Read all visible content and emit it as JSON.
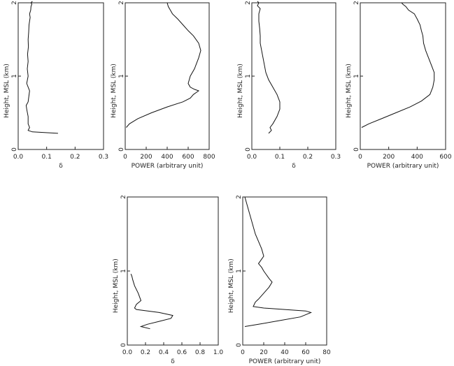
{
  "figure": {
    "background": "#ffffff",
    "line_color": "#111111"
  },
  "chart_data": [
    {
      "type": "line",
      "xlabel": "δ",
      "ylabel": "Height, MSL (km)",
      "xlim": [
        0,
        0.3
      ],
      "ylim": [
        0,
        2
      ],
      "xticks": [
        "0.0",
        "0.1",
        "0.2",
        "0.3"
      ],
      "yticks": [
        "0",
        "1",
        "2"
      ],
      "grid": false,
      "series": [
        {
          "x": [
            0.14,
            0.05,
            0.035,
            0.04,
            0.035,
            0.035,
            0.03,
            0.028,
            0.035,
            0.04,
            0.03,
            0.035,
            0.032,
            0.035,
            0.033,
            0.036,
            0.035,
            0.037,
            0.038,
            0.042,
            0.04,
            0.044,
            0.045,
            0.048,
            0.045,
            0.05
          ],
          "y": [
            0.22,
            0.24,
            0.26,
            0.3,
            0.35,
            0.45,
            0.55,
            0.6,
            0.65,
            0.8,
            0.9,
            1.0,
            1.1,
            1.2,
            1.3,
            1.4,
            1.5,
            1.6,
            1.7,
            1.8,
            1.85,
            1.9,
            1.95,
            1.98,
            2.0,
            2.02
          ]
        }
      ]
    },
    {
      "type": "line",
      "xlabel": "POWER (arbitrary unit)",
      "ylabel": "Height, MSL (km)",
      "xlim": [
        0,
        800
      ],
      "ylim": [
        0,
        2
      ],
      "xticks": [
        "0",
        "200",
        "400",
        "600",
        "800"
      ],
      "yticks": [
        "0",
        "1",
        "2"
      ],
      "grid": false,
      "series": [
        {
          "x": [
            10,
            40,
            120,
            250,
            400,
            550,
            620,
            650,
            680,
            700,
            660,
            620,
            600,
            620,
            660,
            700,
            720,
            700,
            650,
            600,
            550,
            500,
            450,
            430,
            410,
            400
          ],
          "y": [
            0.3,
            0.35,
            0.42,
            0.5,
            0.58,
            0.65,
            0.7,
            0.75,
            0.78,
            0.8,
            0.82,
            0.85,
            0.9,
            1.0,
            1.1,
            1.25,
            1.35,
            1.45,
            1.55,
            1.62,
            1.7,
            1.78,
            1.85,
            1.9,
            1.95,
            2.0
          ]
        }
      ]
    },
    {
      "type": "line",
      "xlabel": "δ",
      "ylabel": "Height, MSL (km)",
      "xlim": [
        0,
        0.3
      ],
      "ylim": [
        0,
        2
      ],
      "xticks": [
        "0.0",
        "0.1",
        "0.2",
        "0.3"
      ],
      "yticks": [
        "0",
        "1",
        "2"
      ],
      "grid": false,
      "series": [
        {
          "x": [
            0.06,
            0.07,
            0.065,
            0.075,
            0.09,
            0.1,
            0.1,
            0.09,
            0.075,
            0.06,
            0.05,
            0.045,
            0.04,
            0.035,
            0.03,
            0.03,
            0.028,
            0.025,
            0.025,
            0.03,
            0.02,
            0.025,
            0.02
          ],
          "y": [
            0.22,
            0.26,
            0.3,
            0.35,
            0.45,
            0.55,
            0.65,
            0.75,
            0.85,
            0.95,
            1.05,
            1.15,
            1.25,
            1.35,
            1.45,
            1.55,
            1.65,
            1.75,
            1.85,
            1.92,
            1.96,
            2.0,
            2.02
          ]
        }
      ]
    },
    {
      "type": "line",
      "xlabel": "POWER (arbitrary unit)",
      "ylabel": "Height, MSL (km)",
      "xlim": [
        0,
        600
      ],
      "ylim": [
        0,
        2
      ],
      "xticks": [
        "0",
        "200",
        "400",
        "600"
      ],
      "yticks": [
        "0",
        "1",
        "2"
      ],
      "grid": false,
      "series": [
        {
          "x": [
            10,
            60,
            150,
            250,
            350,
            430,
            490,
            510,
            520,
            520,
            500,
            480,
            460,
            445,
            440,
            430,
            420,
            400,
            380,
            340,
            320,
            300,
            290
          ],
          "y": [
            0.3,
            0.35,
            0.42,
            0.5,
            0.58,
            0.66,
            0.75,
            0.85,
            0.95,
            1.05,
            1.15,
            1.25,
            1.35,
            1.45,
            1.55,
            1.62,
            1.7,
            1.78,
            1.85,
            1.9,
            1.95,
            1.98,
            2.0
          ]
        }
      ]
    },
    {
      "type": "line",
      "xlabel": "δ",
      "ylabel": "Height, MSL (km)",
      "xlim": [
        0,
        1.0
      ],
      "ylim": [
        0,
        2
      ],
      "xticks": [
        "0.0",
        "0.2",
        "0.4",
        "0.6",
        "0.8",
        "1.0"
      ],
      "yticks": [
        "0",
        "1",
        "2"
      ],
      "grid": false,
      "series": [
        {
          "x": [
            0.25,
            0.15,
            0.22,
            0.35,
            0.48,
            0.5,
            0.35,
            0.1,
            0.08,
            0.1,
            0.15,
            0.12,
            0.08,
            0.06,
            0.05,
            0.04
          ],
          "y": [
            0.22,
            0.25,
            0.28,
            0.32,
            0.36,
            0.4,
            0.44,
            0.48,
            0.5,
            0.55,
            0.6,
            0.7,
            0.8,
            0.88,
            0.93,
            0.96
          ]
        }
      ]
    },
    {
      "type": "line",
      "xlabel": "POWER (arbitrary unit)",
      "ylabel": "Height, MSL (km)",
      "xlim": [
        0,
        80
      ],
      "ylim": [
        0,
        2
      ],
      "xticks": [
        "0",
        "20",
        "40",
        "60",
        "80"
      ],
      "yticks": [
        "0",
        "1",
        "2"
      ],
      "grid": false,
      "series": [
        {
          "x": [
            2,
            15,
            35,
            55,
            65,
            60,
            40,
            20,
            10,
            12,
            15,
            20,
            25,
            28,
            25,
            20,
            18,
            15,
            20,
            18,
            15,
            12,
            10,
            8,
            6,
            4,
            3,
            2
          ],
          "y": [
            0.25,
            0.28,
            0.33,
            0.38,
            0.44,
            0.46,
            0.48,
            0.5,
            0.52,
            0.58,
            0.62,
            0.7,
            0.78,
            0.85,
            0.9,
            1.0,
            1.05,
            1.1,
            1.2,
            1.3,
            1.4,
            1.5,
            1.6,
            1.7,
            1.8,
            1.9,
            1.95,
            2.0
          ]
        }
      ]
    }
  ]
}
